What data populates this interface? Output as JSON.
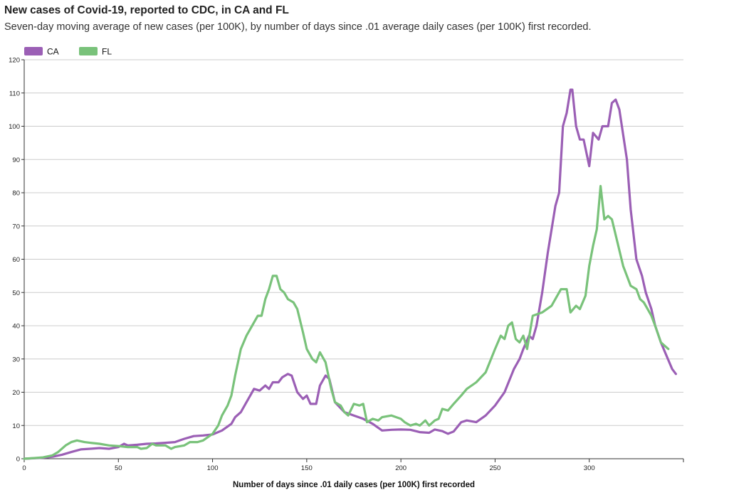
{
  "chart_data": {
    "type": "line",
    "title": "New cases of Covid-19, reported to CDC, in CA and FL",
    "subtitle": "Seven-day moving average of new cases (per 100K), by number of days since .01 average daily cases (per 100K) first recorded.",
    "xlabel": "Number of days since .01 daily cases (per 100K) first recorded",
    "ylabel": "",
    "xlim": [
      0,
      350
    ],
    "ylim": [
      0,
      120
    ],
    "x_ticks": [
      0,
      50,
      100,
      150,
      200,
      250,
      300
    ],
    "y_ticks": [
      0,
      10,
      20,
      30,
      40,
      50,
      60,
      70,
      80,
      90,
      100,
      110,
      120
    ],
    "grid": "horizontal",
    "legend": "top-left",
    "series": [
      {
        "name": "CA",
        "color": "#9b5fb5",
        "points": [
          [
            0,
            0
          ],
          [
            10,
            0.3
          ],
          [
            15,
            0.6
          ],
          [
            20,
            1.2
          ],
          [
            25,
            2
          ],
          [
            30,
            2.8
          ],
          [
            35,
            3
          ],
          [
            40,
            3.2
          ],
          [
            45,
            3
          ],
          [
            50,
            3.5
          ],
          [
            53,
            4.5
          ],
          [
            55,
            4
          ],
          [
            60,
            4.2
          ],
          [
            65,
            4.5
          ],
          [
            70,
            4.6
          ],
          [
            75,
            4.8
          ],
          [
            80,
            5
          ],
          [
            85,
            6
          ],
          [
            90,
            6.8
          ],
          [
            95,
            7
          ],
          [
            100,
            7.3
          ],
          [
            105,
            8.5
          ],
          [
            110,
            10.5
          ],
          [
            112,
            12.5
          ],
          [
            115,
            14
          ],
          [
            118,
            17
          ],
          [
            120,
            19
          ],
          [
            122,
            21
          ],
          [
            125,
            20.5
          ],
          [
            128,
            22
          ],
          [
            130,
            21
          ],
          [
            132,
            23
          ],
          [
            135,
            23
          ],
          [
            137,
            24.5
          ],
          [
            140,
            25.5
          ],
          [
            142,
            25
          ],
          [
            145,
            20
          ],
          [
            148,
            18
          ],
          [
            150,
            19
          ],
          [
            152,
            16.5
          ],
          [
            155,
            16.5
          ],
          [
            157,
            22
          ],
          [
            160,
            25
          ],
          [
            162,
            24
          ],
          [
            165,
            17
          ],
          [
            170,
            14
          ],
          [
            175,
            13
          ],
          [
            180,
            12
          ],
          [
            185,
            10.5
          ],
          [
            190,
            8.5
          ],
          [
            195,
            8.7
          ],
          [
            200,
            8.8
          ],
          [
            205,
            8.7
          ],
          [
            210,
            8
          ],
          [
            215,
            7.8
          ],
          [
            218,
            8.8
          ],
          [
            222,
            8.3
          ],
          [
            225,
            7.5
          ],
          [
            228,
            8.2
          ],
          [
            232,
            11
          ],
          [
            235,
            11.5
          ],
          [
            240,
            11
          ],
          [
            245,
            13
          ],
          [
            250,
            16
          ],
          [
            255,
            20
          ],
          [
            260,
            27
          ],
          [
            263,
            30
          ],
          [
            265,
            33
          ],
          [
            268,
            37
          ],
          [
            270,
            36
          ],
          [
            272,
            40
          ],
          [
            275,
            50
          ],
          [
            278,
            62
          ],
          [
            282,
            76
          ],
          [
            284,
            80
          ],
          [
            286,
            100
          ],
          [
            288,
            104
          ],
          [
            290,
            111
          ],
          [
            291,
            111
          ],
          [
            293,
            100
          ],
          [
            295,
            96
          ],
          [
            297,
            96
          ],
          [
            300,
            88
          ],
          [
            302,
            98
          ],
          [
            305,
            96
          ],
          [
            307,
            100
          ],
          [
            310,
            100
          ],
          [
            312,
            107
          ],
          [
            314,
            108
          ],
          [
            316,
            105
          ],
          [
            320,
            90
          ],
          [
            322,
            75
          ],
          [
            325,
            60
          ],
          [
            328,
            55
          ],
          [
            330,
            50
          ],
          [
            333,
            45
          ],
          [
            335,
            40
          ],
          [
            338,
            35
          ],
          [
            341,
            31
          ],
          [
            344,
            27
          ],
          [
            346,
            25.5
          ]
        ]
      },
      {
        "name": "FL",
        "color": "#79c27a",
        "points": [
          [
            0,
            0
          ],
          [
            5,
            0.2
          ],
          [
            10,
            0.4
          ],
          [
            15,
            1
          ],
          [
            18,
            2
          ],
          [
            22,
            4
          ],
          [
            25,
            5
          ],
          [
            28,
            5.5
          ],
          [
            32,
            5
          ],
          [
            35,
            4.8
          ],
          [
            40,
            4.5
          ],
          [
            45,
            4
          ],
          [
            50,
            3.8
          ],
          [
            55,
            3.5
          ],
          [
            60,
            3.5
          ],
          [
            62,
            3
          ],
          [
            65,
            3.2
          ],
          [
            68,
            4.5
          ],
          [
            70,
            4
          ],
          [
            75,
            4
          ],
          [
            78,
            3
          ],
          [
            80,
            3.5
          ],
          [
            85,
            4
          ],
          [
            88,
            5
          ],
          [
            92,
            5
          ],
          [
            95,
            5.5
          ],
          [
            100,
            7.5
          ],
          [
            103,
            10
          ],
          [
            105,
            13
          ],
          [
            108,
            16
          ],
          [
            110,
            19
          ],
          [
            112,
            25
          ],
          [
            115,
            33
          ],
          [
            118,
            37
          ],
          [
            120,
            39
          ],
          [
            122,
            41
          ],
          [
            124,
            43
          ],
          [
            126,
            43
          ],
          [
            128,
            48
          ],
          [
            130,
            51
          ],
          [
            132,
            55
          ],
          [
            134,
            55
          ],
          [
            136,
            51
          ],
          [
            138,
            50
          ],
          [
            140,
            48
          ],
          [
            143,
            47
          ],
          [
            145,
            45
          ],
          [
            148,
            38
          ],
          [
            150,
            33
          ],
          [
            153,
            30
          ],
          [
            155,
            29
          ],
          [
            157,
            32
          ],
          [
            160,
            29
          ],
          [
            163,
            21
          ],
          [
            165,
            17
          ],
          [
            168,
            16
          ],
          [
            170,
            14
          ],
          [
            172,
            13
          ],
          [
            175,
            16.5
          ],
          [
            178,
            16
          ],
          [
            180,
            16.5
          ],
          [
            182,
            11
          ],
          [
            185,
            12
          ],
          [
            188,
            11.5
          ],
          [
            190,
            12.5
          ],
          [
            195,
            13
          ],
          [
            200,
            12
          ],
          [
            202,
            11
          ],
          [
            205,
            10
          ],
          [
            208,
            10.5
          ],
          [
            210,
            10
          ],
          [
            213,
            11.5
          ],
          [
            215,
            10
          ],
          [
            218,
            11.5
          ],
          [
            220,
            12
          ],
          [
            222,
            15
          ],
          [
            225,
            14.5
          ],
          [
            228,
            16.5
          ],
          [
            232,
            19
          ],
          [
            235,
            21
          ],
          [
            240,
            23
          ],
          [
            245,
            26
          ],
          [
            250,
            33
          ],
          [
            253,
            37
          ],
          [
            255,
            36
          ],
          [
            257,
            40
          ],
          [
            259,
            41
          ],
          [
            261,
            36
          ],
          [
            263,
            35
          ],
          [
            265,
            37
          ],
          [
            267,
            33
          ],
          [
            270,
            43
          ],
          [
            275,
            44
          ],
          [
            280,
            46
          ],
          [
            283,
            49
          ],
          [
            285,
            51
          ],
          [
            288,
            51
          ],
          [
            290,
            44
          ],
          [
            293,
            46
          ],
          [
            295,
            45
          ],
          [
            298,
            49
          ],
          [
            300,
            58
          ],
          [
            302,
            64
          ],
          [
            304,
            69
          ],
          [
            306,
            82
          ],
          [
            308,
            72
          ],
          [
            310,
            73
          ],
          [
            312,
            72
          ],
          [
            315,
            65
          ],
          [
            318,
            58
          ],
          [
            320,
            55
          ],
          [
            322,
            52
          ],
          [
            325,
            51
          ],
          [
            327,
            48
          ],
          [
            329,
            47
          ],
          [
            331,
            45
          ],
          [
            333,
            43
          ],
          [
            335,
            40
          ],
          [
            338,
            35
          ],
          [
            340,
            34
          ],
          [
            342,
            33
          ]
        ]
      }
    ]
  }
}
